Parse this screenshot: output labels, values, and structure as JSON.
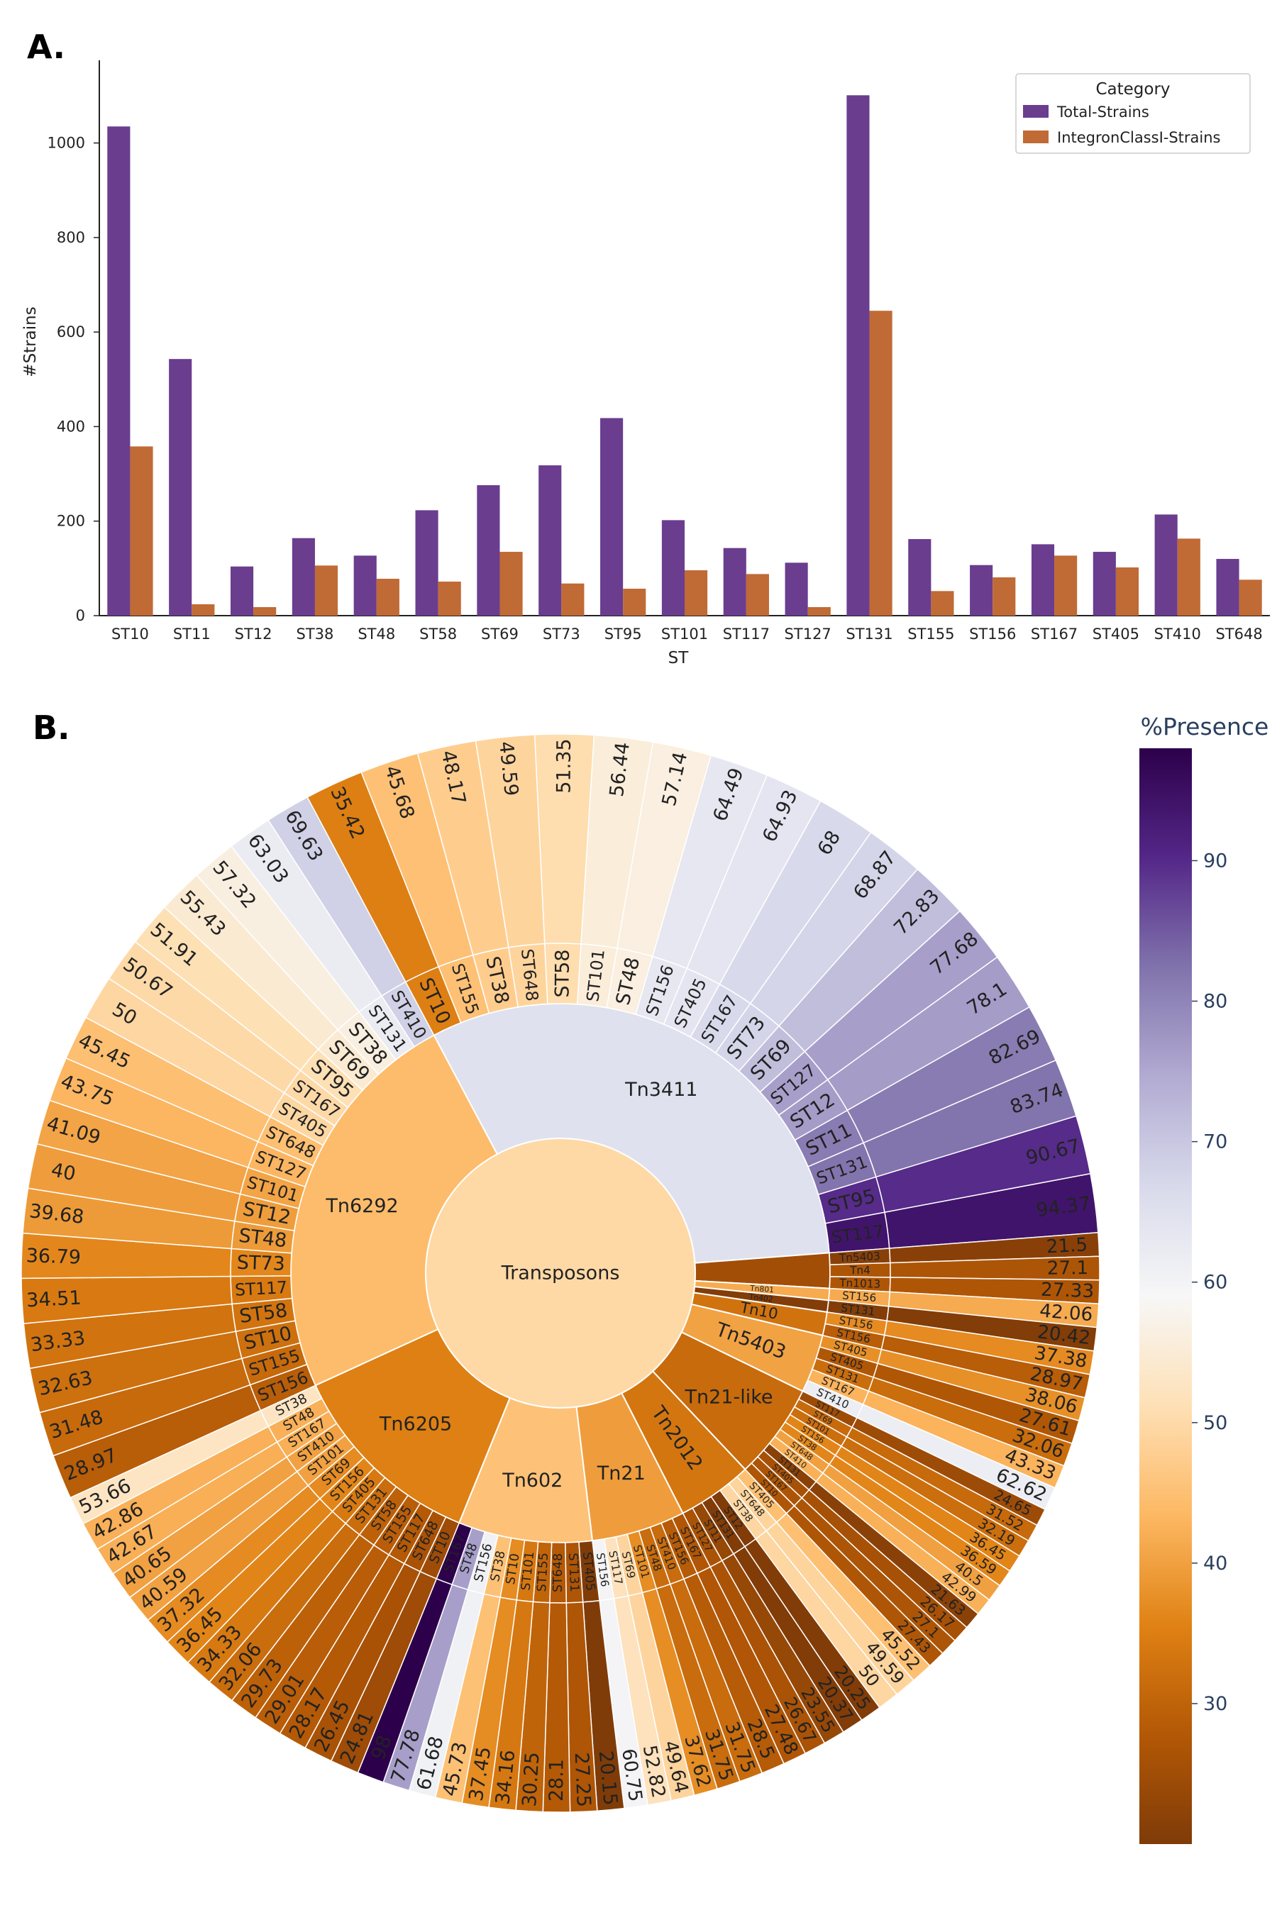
{
  "panel_a_label": "A.",
  "panel_b_label": "B.",
  "chart_data": [
    {
      "type": "bar",
      "xlabel": "ST",
      "ylabel": "#Strains",
      "ylim": [
        0,
        1160
      ],
      "yticks": [
        0,
        200,
        400,
        600,
        800,
        1000
      ],
      "categories": [
        "ST10",
        "ST11",
        "ST12",
        "ST38",
        "ST48",
        "ST58",
        "ST69",
        "ST73",
        "ST95",
        "ST101",
        "ST117",
        "ST127",
        "ST131",
        "ST155",
        "ST156",
        "ST167",
        "ST405",
        "ST410",
        "ST648"
      ],
      "series": [
        {
          "name": "Total-Strains",
          "color": "#6a3d8f",
          "values": [
            1035,
            543,
            104,
            164,
            127,
            223,
            276,
            318,
            418,
            202,
            143,
            112,
            1101,
            162,
            107,
            151,
            135,
            214,
            120
          ]
        },
        {
          "name": "IntegronClassI-Strains",
          "color": "#c06a35",
          "values": [
            358,
            24,
            18,
            106,
            78,
            72,
            135,
            68,
            57,
            96,
            88,
            18,
            645,
            52,
            81,
            127,
            102,
            163,
            76
          ]
        }
      ],
      "legend": {
        "title": "Category",
        "placement": "top-right"
      },
      "grid": false
    },
    {
      "type": "sunburst",
      "root": "Transposons",
      "colorbar": {
        "title": "%Presence",
        "ticks": [
          30,
          40,
          50,
          60,
          70,
          80,
          90
        ],
        "range": [
          20,
          98
        ]
      },
      "children": [
        {
          "name": "Tn3411",
          "value": 63,
          "leaves": [
            {
              "st": "ST10",
              "p": 35.42
            },
            {
              "st": "ST155",
              "p": 45.68
            },
            {
              "st": "ST38",
              "p": 48.17
            },
            {
              "st": "ST648",
              "p": 49.59
            },
            {
              "st": "ST58",
              "p": 51.35
            },
            {
              "st": "ST101",
              "p": 56.44
            },
            {
              "st": "ST48",
              "p": 57.14
            },
            {
              "st": "ST156",
              "p": 64.49
            },
            {
              "st": "ST405",
              "p": 64.93
            },
            {
              "st": "ST167",
              "p": 68.0
            },
            {
              "st": "ST73",
              "p": 68.87
            },
            {
              "st": "ST69",
              "p": 72.83
            },
            {
              "st": "ST127",
              "p": 77.68
            },
            {
              "st": "ST12",
              "p": 78.1
            },
            {
              "st": "ST11",
              "p": 82.69
            },
            {
              "st": "ST131",
              "p": 83.74
            },
            {
              "st": "ST95",
              "p": 90.67
            },
            {
              "st": "ST117",
              "p": 94.37
            }
          ]
        },
        {
          "name": "",
          "value": 4.2,
          "leaves": [
            {
              "st": "ST156",
              "lbl": "Tn5403",
              "p": 21.5
            },
            {
              "st": "ST156",
              "lbl": "Tn4",
              "p": 27.1
            },
            {
              "st": "ST167",
              "lbl": "Tn1013",
              "p": 27.33
            }
          ]
        },
        {
          "name": "Tn801",
          "value": 1.4,
          "leaves": [
            {
              "st": "ST156",
              "p": 42.06
            }
          ]
        },
        {
          "name": "Tn402",
          "value": 1.4,
          "leaves": [
            {
              "st": "ST131",
              "p": 20.42
            }
          ]
        },
        {
          "name": "Tn10",
          "value": 2.8,
          "leaves": [
            {
              "st": "ST156",
              "p": 37.38
            },
            {
              "st": "ST156",
              "p": 28.97
            }
          ]
        },
        {
          "name": "Tn5403",
          "value": 7,
          "leaves": [
            {
              "st": "ST405",
              "p": 38.06
            },
            {
              "st": "ST405",
              "p": 27.61
            },
            {
              "st": "ST131",
              "p": 32.06
            },
            {
              "st": "ST167",
              "p": 43.33
            },
            {
              "st": "ST410",
              "p": 62.62
            }
          ]
        },
        {
          "name": "Tn21-like",
          "value": 11.5,
          "leaves": [
            {
              "st": "ST117",
              "p": 24.65
            },
            {
              "st": "ST69",
              "p": 31.52
            },
            {
              "st": "ST101",
              "p": 32.19
            },
            {
              "st": "ST156",
              "p": 36.45
            },
            {
              "st": "ST38",
              "p": 36.59
            },
            {
              "st": "ST648",
              "p": 40.5
            },
            {
              "st": "ST410",
              "p": 42.99
            },
            {
              "st": "ST131",
              "p": 21.63
            },
            {
              "st": "ST405",
              "p": 26.17
            },
            {
              "st": "ST167",
              "p": 27.1
            },
            {
              "st": "ST10",
              "p": 27.43
            }
          ]
        },
        {
          "name": "Tn2012",
          "value": 9,
          "leaves": [
            {
              "st": "ST405",
              "p": 45.52
            },
            {
              "st": "ST648",
              "p": 49.59
            },
            {
              "st": "ST38",
              "p": 50.0
            },
            {
              "st": "ST12",
              "p": 20.25
            },
            {
              "st": "ST131",
              "p": 20.37
            },
            {
              "st": "ST11",
              "p": 23.55
            },
            {
              "st": "ST127",
              "p": 26.67
            }
          ]
        },
        {
          "name": "Tn21",
          "value": 11.2,
          "leaves": [
            {
              "st": "ST167",
              "p": 27.48
            },
            {
              "st": "ST156",
              "p": 28.5
            },
            {
              "st": "ST410",
              "p": 31.75
            },
            {
              "st": "ST48",
              "p": 31.75
            },
            {
              "st": "ST101",
              "p": 37.62
            },
            {
              "st": "ST69",
              "p": 49.64
            },
            {
              "st": "ST117",
              "p": 52.82
            },
            {
              "st": "ST156",
              "p": 60.75
            }
          ]
        },
        {
          "name": "Tn602",
          "value": 16,
          "leaves": [
            {
              "st": "ST405",
              "p": 20.15
            },
            {
              "st": "ST131",
              "p": 27.25
            },
            {
              "st": "ST648",
              "p": 28.1
            },
            {
              "st": "ST155",
              "p": 30.25
            },
            {
              "st": "ST101",
              "p": 34.16
            },
            {
              "st": "ST10",
              "p": 37.45
            },
            {
              "st": "ST38",
              "p": 45.73
            },
            {
              "st": "ST156",
              "p": 61.68
            },
            {
              "st": "ST48",
              "p": 77.78
            },
            {
              "st": "ST167",
              "p": 98.0
            }
          ]
        },
        {
          "name": "Tn6205",
          "value": 24,
          "leaves": [
            {
              "st": "ST10",
              "p": 24.81
            },
            {
              "st": "ST648",
              "p": 26.45
            },
            {
              "st": "ST117",
              "p": 28.17
            },
            {
              "st": "ST155",
              "p": 29.01
            },
            {
              "st": "ST58",
              "p": 29.73
            },
            {
              "st": "ST131",
              "p": 32.06
            },
            {
              "st": "ST405",
              "p": 34.33
            },
            {
              "st": "ST156",
              "p": 36.45
            },
            {
              "st": "ST69",
              "p": 37.32
            },
            {
              "st": "ST101",
              "p": 40.59
            },
            {
              "st": "ST410",
              "p": 40.65
            },
            {
              "st": "ST167",
              "p": 42.67
            },
            {
              "st": "ST48",
              "p": 42.86
            },
            {
              "st": "ST38",
              "p": 53.66
            }
          ]
        },
        {
          "name": "Tn6292",
          "value": 48,
          "leaves": [
            {
              "st": "ST156",
              "p": 28.97
            },
            {
              "st": "ST155",
              "p": 31.48
            },
            {
              "st": "ST10",
              "p": 32.63
            },
            {
              "st": "ST58",
              "p": 33.33
            },
            {
              "st": "ST117",
              "p": 34.51
            },
            {
              "st": "ST73",
              "p": 36.79
            },
            {
              "st": "ST48",
              "p": 39.68
            },
            {
              "st": "ST12",
              "p": 40.0
            },
            {
              "st": "ST101",
              "p": 41.09
            },
            {
              "st": "ST127",
              "p": 43.75
            },
            {
              "st": "ST648",
              "p": 45.45
            },
            {
              "st": "ST405",
              "p": 50.0
            },
            {
              "st": "ST167",
              "p": 50.67
            },
            {
              "st": "ST95",
              "p": 51.91
            },
            {
              "st": "ST69",
              "p": 55.43
            },
            {
              "st": "ST38",
              "p": 57.32
            },
            {
              "st": "ST131",
              "p": 63.03
            },
            {
              "st": "ST410",
              "p": 69.63
            }
          ]
        }
      ]
    }
  ]
}
